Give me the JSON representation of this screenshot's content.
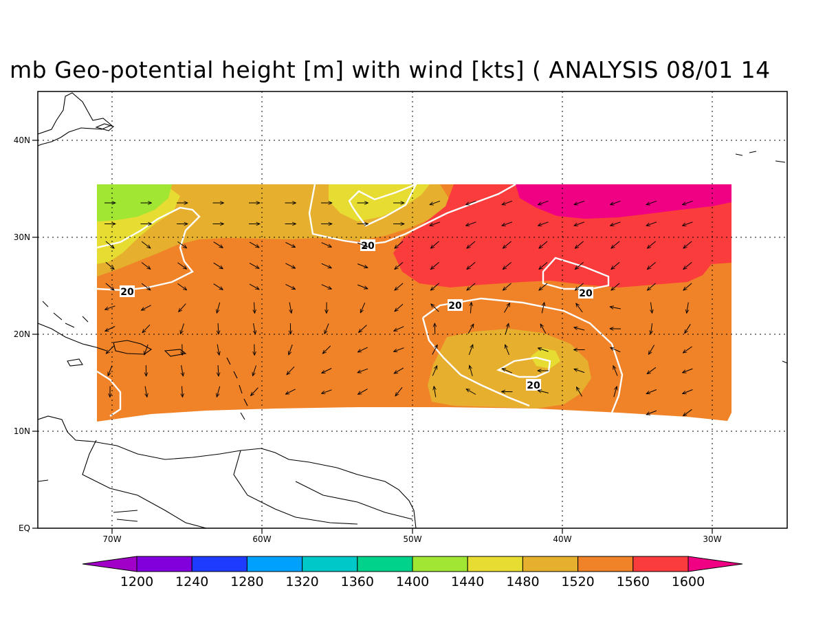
{
  "title": "mb Geo-potential height [m] with wind [kts] ( ANALYSIS 08/01 14",
  "map": {
    "lon_range": [
      -75,
      -25
    ],
    "lat_range": [
      0,
      45
    ],
    "lon_ticks": [
      "70W",
      "60W",
      "50W",
      "40W",
      "30W"
    ],
    "lat_ticks": [
      "40N",
      "30N",
      "20N",
      "10N",
      "EQ"
    ],
    "gridlines": true,
    "colors": {
      "c1440": "#a0e632",
      "c1480": "#e6dc32",
      "c1520": "#e6af2d",
      "c1560": "#f08228",
      "c1600": "#fa3c3c",
      "c1640": "#f00082"
    },
    "wind_contour_label": "20",
    "wind_contour_labels": [
      "20",
      "20",
      "20",
      "20",
      "20"
    ]
  },
  "colorbar": {
    "labels": [
      "1200",
      "1240",
      "1280",
      "1320",
      "1360",
      "1400",
      "1440",
      "1480",
      "1520",
      "1560",
      "1600"
    ],
    "colors": [
      "#a000c8",
      "#8200dc",
      "#1e3cff",
      "#00a0ff",
      "#00c8c8",
      "#00d28c",
      "#a0e632",
      "#e6dc32",
      "#e6af2d",
      "#f08228",
      "#fa3c3c",
      "#f00082"
    ]
  }
}
